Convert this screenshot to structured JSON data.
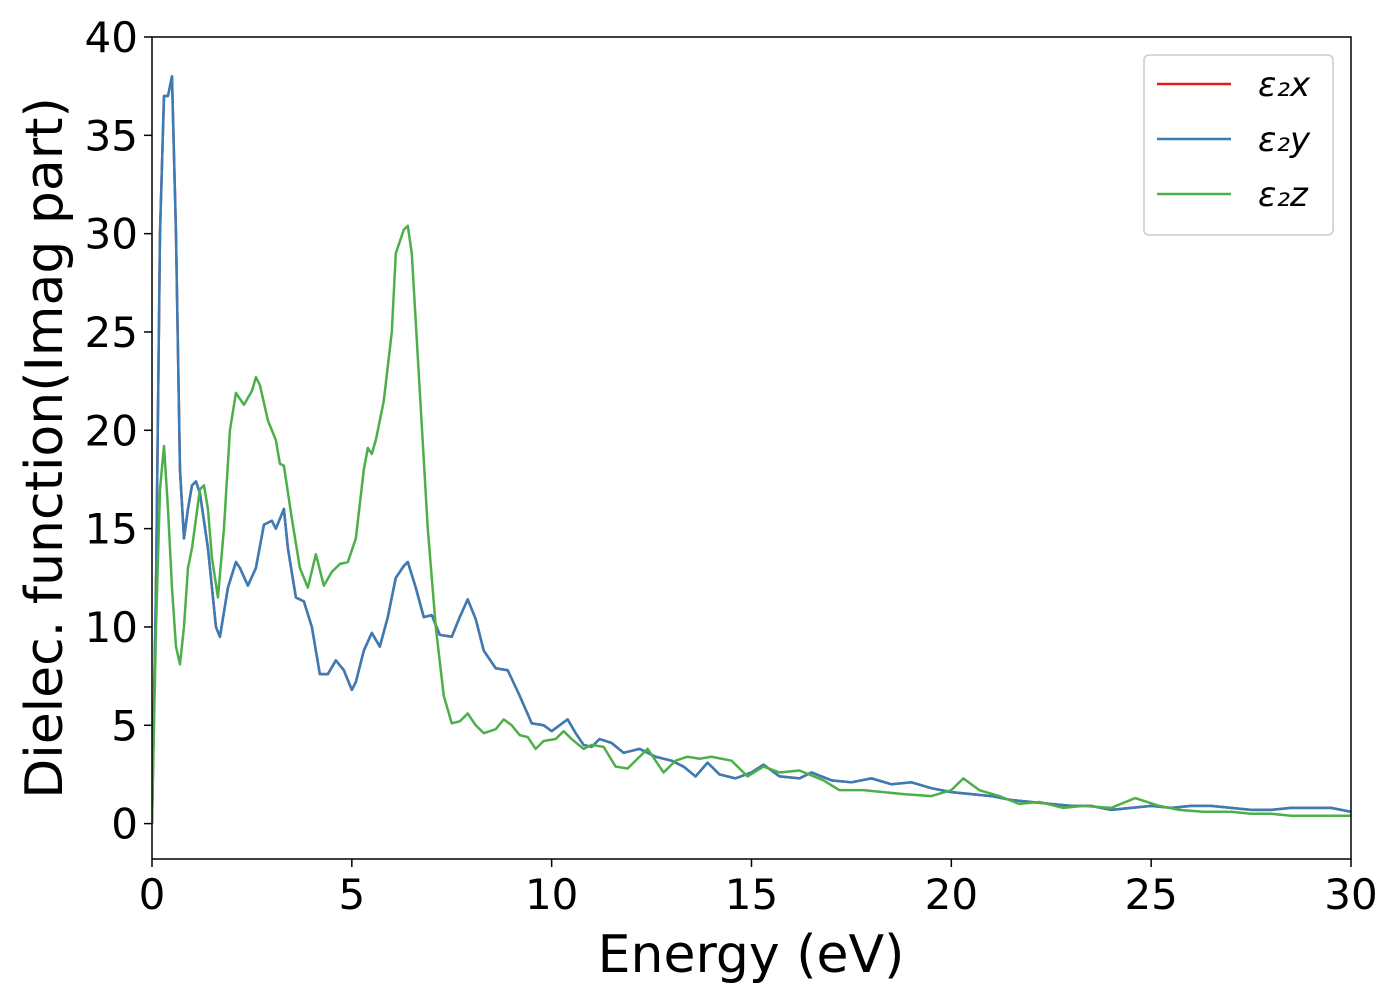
{
  "chart_data": {
    "type": "line",
    "xlabel": "Energy (eV)",
    "ylabel": "Dielec. function(Imag part)",
    "xlim": [
      0,
      30
    ],
    "ylim": [
      -1.8,
      40
    ],
    "xticks": [
      0,
      5,
      10,
      15,
      20,
      25,
      30
    ],
    "yticks": [
      0,
      5,
      10,
      15,
      20,
      25,
      30,
      35,
      40
    ],
    "grid": false,
    "legend": "upper right",
    "series": [
      {
        "name": "ε₂x",
        "color": "#e41a1c",
        "x": [
          0,
          0.1,
          0.2,
          0.3,
          0.4,
          0.5,
          0.6,
          0.7,
          0.8,
          0.9,
          1.0,
          1.1,
          1.2,
          1.4,
          1.6,
          1.7,
          1.9,
          2.1,
          2.2,
          2.4,
          2.6,
          2.8,
          3.0,
          3.1,
          3.2,
          3.3,
          3.4,
          3.6,
          3.8,
          4.0,
          4.2,
          4.4,
          4.6,
          4.8,
          5.0,
          5.1,
          5.3,
          5.5,
          5.7,
          5.9,
          6.1,
          6.3,
          6.4,
          6.6,
          6.8,
          7.0,
          7.2,
          7.5,
          7.7,
          7.9,
          8.1,
          8.3,
          8.6,
          8.9,
          9.2,
          9.5,
          9.8,
          10,
          10.2,
          10.4,
          10.6,
          10.8,
          11,
          11.2,
          11.5,
          11.8,
          12.2,
          12.6,
          13,
          13.3,
          13.6,
          13.9,
          14.2,
          14.6,
          15,
          15.3,
          15.7,
          16.2,
          16.5,
          17,
          17.5,
          18,
          18.5,
          19,
          19.5,
          20,
          20.5,
          21,
          21.5,
          22,
          22.5,
          23,
          23.5,
          24,
          24.5,
          25,
          25.5,
          26,
          26.5,
          27,
          27.5,
          28,
          28.5,
          29,
          29.5,
          30
        ],
        "values": [
          0,
          12,
          30,
          37,
          37,
          38,
          30,
          18,
          14.5,
          16,
          17.2,
          17.4,
          16.8,
          14,
          10,
          9.5,
          12,
          13.3,
          13,
          12.1,
          13,
          15.2,
          15.4,
          15,
          15.5,
          16,
          14,
          11.5,
          11.3,
          10,
          7.6,
          7.6,
          8.3,
          7.8,
          6.8,
          7.2,
          8.8,
          9.7,
          9,
          10.5,
          12.5,
          13.1,
          13.3,
          12,
          10.5,
          10.6,
          9.6,
          9.5,
          10.5,
          11.4,
          10.4,
          8.8,
          7.9,
          7.8,
          6.5,
          5.1,
          5,
          4.7,
          5,
          5.3,
          4.6,
          4,
          3.9,
          4.3,
          4.1,
          3.6,
          3.8,
          3.4,
          3.2,
          2.9,
          2.4,
          3.1,
          2.5,
          2.3,
          2.6,
          3.0,
          2.4,
          2.3,
          2.6,
          2.2,
          2.1,
          2.3,
          2.0,
          2.1,
          1.8,
          1.6,
          1.5,
          1.4,
          1.2,
          1.1,
          1.0,
          0.9,
          0.9,
          0.7,
          0.8,
          0.9,
          0.8,
          0.9,
          0.9,
          0.8,
          0.7,
          0.7,
          0.8,
          0.8,
          0.8,
          0.6
        ]
      },
      {
        "name": "ε₂y",
        "color": "#377eb8",
        "x": [
          0,
          0.1,
          0.2,
          0.3,
          0.4,
          0.5,
          0.6,
          0.7,
          0.8,
          0.9,
          1.0,
          1.1,
          1.2,
          1.4,
          1.6,
          1.7,
          1.9,
          2.1,
          2.2,
          2.4,
          2.6,
          2.8,
          3.0,
          3.1,
          3.2,
          3.3,
          3.4,
          3.6,
          3.8,
          4.0,
          4.2,
          4.4,
          4.6,
          4.8,
          5.0,
          5.1,
          5.3,
          5.5,
          5.7,
          5.9,
          6.1,
          6.3,
          6.4,
          6.6,
          6.8,
          7.0,
          7.2,
          7.5,
          7.7,
          7.9,
          8.1,
          8.3,
          8.6,
          8.9,
          9.2,
          9.5,
          9.8,
          10,
          10.2,
          10.4,
          10.6,
          10.8,
          11,
          11.2,
          11.5,
          11.8,
          12.2,
          12.6,
          13,
          13.3,
          13.6,
          13.9,
          14.2,
          14.6,
          15,
          15.3,
          15.7,
          16.2,
          16.5,
          17,
          17.5,
          18,
          18.5,
          19,
          19.5,
          20,
          20.5,
          21,
          21.5,
          22,
          22.5,
          23,
          23.5,
          24,
          24.5,
          25,
          25.5,
          26,
          26.5,
          27,
          27.5,
          28,
          28.5,
          29,
          29.5,
          30
        ],
        "values": [
          0,
          12,
          30,
          37,
          37,
          38,
          30,
          18,
          14.5,
          16,
          17.2,
          17.4,
          16.8,
          14,
          10,
          9.5,
          12,
          13.3,
          13,
          12.1,
          13,
          15.2,
          15.4,
          15,
          15.5,
          16,
          14,
          11.5,
          11.3,
          10,
          7.6,
          7.6,
          8.3,
          7.8,
          6.8,
          7.2,
          8.8,
          9.7,
          9,
          10.5,
          12.5,
          13.1,
          13.3,
          12,
          10.5,
          10.6,
          9.6,
          9.5,
          10.5,
          11.4,
          10.4,
          8.8,
          7.9,
          7.8,
          6.5,
          5.1,
          5,
          4.7,
          5,
          5.3,
          4.6,
          4,
          3.9,
          4.3,
          4.1,
          3.6,
          3.8,
          3.4,
          3.2,
          2.9,
          2.4,
          3.1,
          2.5,
          2.3,
          2.6,
          3.0,
          2.4,
          2.3,
          2.6,
          2.2,
          2.1,
          2.3,
          2.0,
          2.1,
          1.8,
          1.6,
          1.5,
          1.4,
          1.2,
          1.1,
          1.0,
          0.9,
          0.9,
          0.7,
          0.8,
          0.9,
          0.8,
          0.9,
          0.9,
          0.8,
          0.7,
          0.7,
          0.8,
          0.8,
          0.8,
          0.6
        ]
      },
      {
        "name": "ε₂z",
        "color": "#4daf4a",
        "x": [
          0,
          0.1,
          0.2,
          0.3,
          0.4,
          0.5,
          0.6,
          0.7,
          0.8,
          0.9,
          1.0,
          1.1,
          1.2,
          1.3,
          1.4,
          1.5,
          1.65,
          1.8,
          1.95,
          2.1,
          2.3,
          2.5,
          2.6,
          2.7,
          2.9,
          3.1,
          3.2,
          3.3,
          3.5,
          3.7,
          3.9,
          4.1,
          4.3,
          4.5,
          4.7,
          4.9,
          5.1,
          5.3,
          5.4,
          5.5,
          5.6,
          5.8,
          6.0,
          6.1,
          6.3,
          6.4,
          6.5,
          6.7,
          6.9,
          7.1,
          7.3,
          7.5,
          7.7,
          7.9,
          8.1,
          8.3,
          8.6,
          8.8,
          9.0,
          9.2,
          9.4,
          9.6,
          9.8,
          10.1,
          10.3,
          10.5,
          10.8,
          11,
          11.3,
          11.6,
          11.9,
          12.1,
          12.4,
          12.8,
          13.1,
          13.4,
          13.7,
          14,
          14.5,
          14.9,
          15.3,
          15.7,
          16.2,
          16.8,
          17.2,
          17.8,
          18.3,
          18.8,
          19.5,
          20,
          20.3,
          20.7,
          21.2,
          21.7,
          22.2,
          22.8,
          23.3,
          24,
          24.6,
          25.2,
          25.7,
          26.3,
          27,
          27.5,
          28,
          28.5,
          29,
          30
        ],
        "values": [
          0,
          10,
          17,
          19.2,
          16,
          12,
          9,
          8.1,
          10,
          13,
          14,
          15.5,
          17,
          17.2,
          16,
          13.5,
          11.5,
          15,
          20,
          21.9,
          21.3,
          22,
          22.7,
          22.3,
          20.5,
          19.5,
          18.3,
          18.2,
          15.5,
          13,
          12,
          13.7,
          12.1,
          12.8,
          13.2,
          13.3,
          14.5,
          18,
          19.1,
          18.8,
          19.5,
          21.5,
          25,
          29,
          30.2,
          30.4,
          29,
          22,
          15,
          10,
          6.5,
          5.1,
          5.2,
          5.6,
          5,
          4.6,
          4.8,
          5.3,
          5,
          4.5,
          4.4,
          3.8,
          4.2,
          4.3,
          4.7,
          4.3,
          3.8,
          4.0,
          3.9,
          2.9,
          2.8,
          3.2,
          3.8,
          2.6,
          3.2,
          3.4,
          3.3,
          3.4,
          3.2,
          2.4,
          2.9,
          2.6,
          2.7,
          2.2,
          1.7,
          1.7,
          1.6,
          1.5,
          1.4,
          1.7,
          2.3,
          1.7,
          1.4,
          1.0,
          1.1,
          0.8,
          0.9,
          0.8,
          1.3,
          0.9,
          0.7,
          0.6,
          0.6,
          0.5,
          0.5,
          0.4,
          0.4,
          0.4
        ]
      }
    ]
  }
}
